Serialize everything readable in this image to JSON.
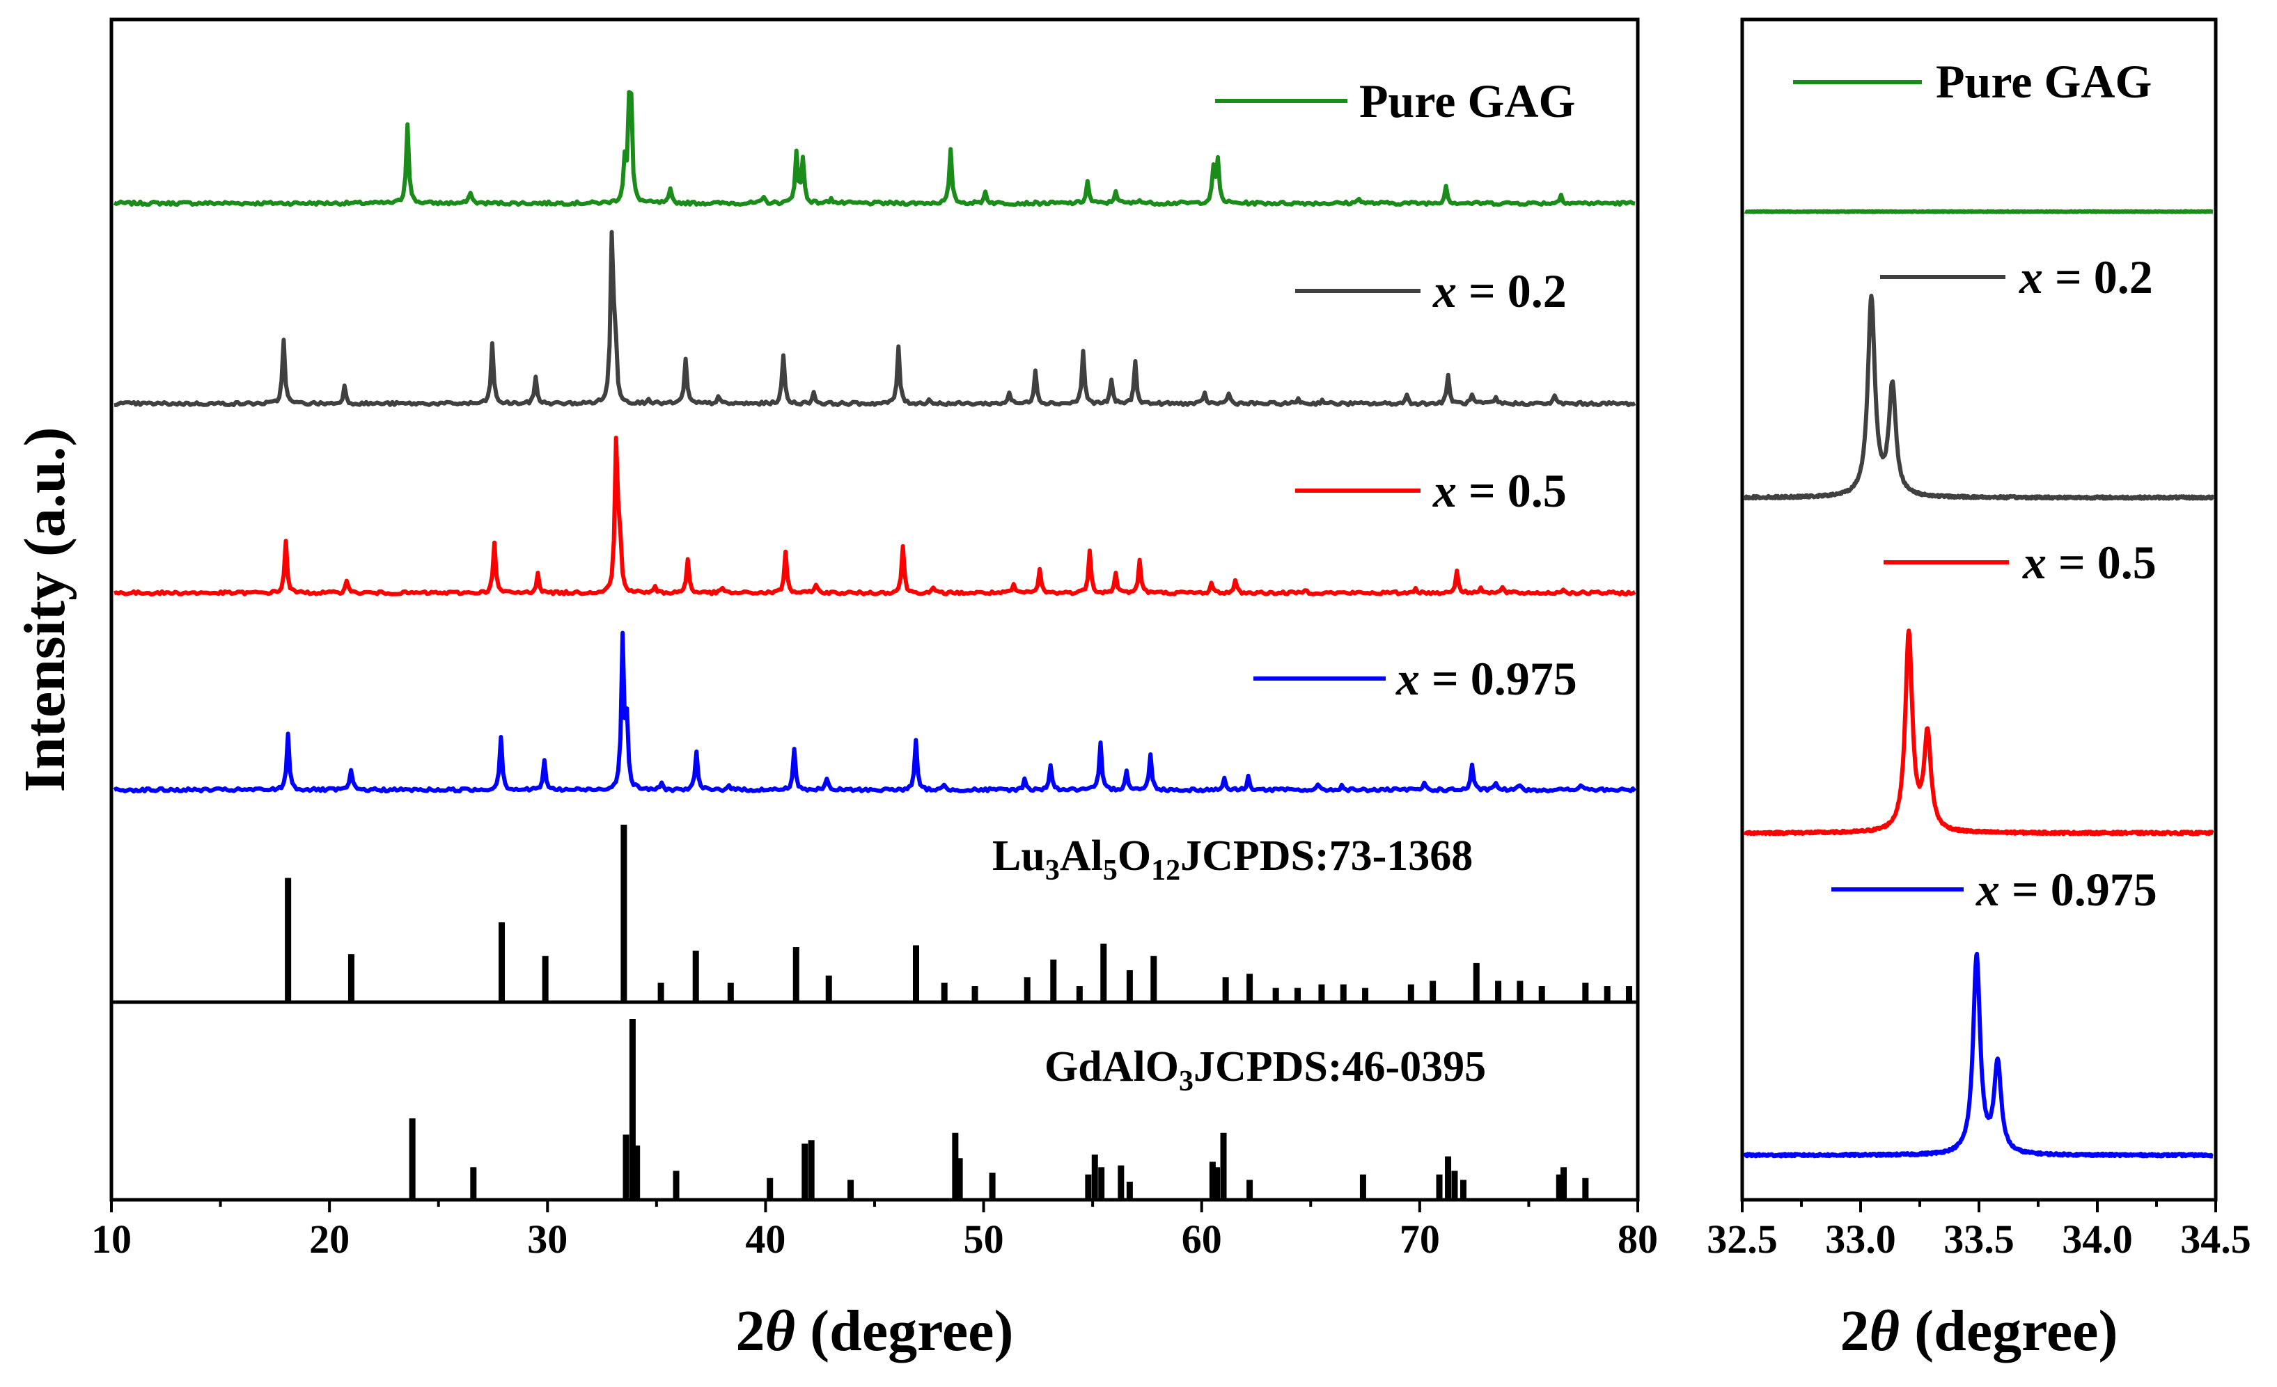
{
  "chart_data": [
    {
      "type": "line",
      "panel": "main",
      "xlabel_prefix": "2",
      "xlabel_symbol": "θ",
      "xlabel_suffix": " (degree)",
      "ylabel": "Intensity (a.u.)",
      "xlim": [
        10,
        80
      ],
      "xticks": [
        10,
        20,
        30,
        40,
        50,
        60,
        70,
        80
      ],
      "series": [
        {
          "name": "Pure GAG",
          "legend": "Pure GAG",
          "color": "#1a8c1a",
          "peaks": [
            [
              23.5,
              55
            ],
            [
              26.4,
              8
            ],
            [
              33.5,
              28
            ],
            [
              33.75,
              110
            ],
            [
              35.6,
              9
            ],
            [
              39.9,
              4
            ],
            [
              41.4,
              35
            ],
            [
              41.7,
              30
            ],
            [
              43.0,
              4
            ],
            [
              48.5,
              36
            ],
            [
              50.1,
              8
            ],
            [
              54.8,
              15
            ],
            [
              56.1,
              9
            ],
            [
              57.2,
              3
            ],
            [
              60.6,
              24
            ],
            [
              60.8,
              28
            ],
            [
              67.3,
              4
            ],
            [
              71.3,
              12
            ],
            [
              76.6,
              6
            ]
          ]
        },
        {
          "name": "x = 0.2",
          "legend_var": "x",
          "legend_val": " = 0.2",
          "color": "#404040",
          "peaks": [
            [
              17.8,
              45
            ],
            [
              20.6,
              12
            ],
            [
              27.4,
              42
            ],
            [
              29.4,
              19
            ],
            [
              32.9,
              110
            ],
            [
              33.05,
              55
            ],
            [
              34.6,
              4
            ],
            [
              36.3,
              31
            ],
            [
              37.8,
              5
            ],
            [
              40.8,
              34
            ],
            [
              42.2,
              8
            ],
            [
              46.1,
              40
            ],
            [
              47.5,
              3
            ],
            [
              51.2,
              8
            ],
            [
              52.4,
              24
            ],
            [
              54.6,
              37
            ],
            [
              55.9,
              16
            ],
            [
              57.0,
              29
            ],
            [
              60.2,
              7
            ],
            [
              61.3,
              8
            ],
            [
              64.5,
              4
            ],
            [
              65.6,
              3
            ],
            [
              69.5,
              6
            ],
            [
              71.4,
              20
            ],
            [
              72.5,
              6
            ],
            [
              73.6,
              4
            ],
            [
              76.3,
              5
            ]
          ]
        },
        {
          "name": "x = 0.5",
          "legend_var": "x",
          "legend_val": " = 0.5",
          "color": "#ff0000",
          "peaks": [
            [
              17.9,
              38
            ],
            [
              20.7,
              10
            ],
            [
              27.5,
              37
            ],
            [
              29.5,
              15
            ],
            [
              33.1,
              105
            ],
            [
              33.25,
              50
            ],
            [
              34.9,
              4
            ],
            [
              36.4,
              25
            ],
            [
              38.0,
              4
            ],
            [
              40.9,
              30
            ],
            [
              42.3,
              7
            ],
            [
              46.3,
              34
            ],
            [
              47.7,
              3
            ],
            [
              51.4,
              6
            ],
            [
              52.6,
              17
            ],
            [
              54.9,
              32
            ],
            [
              56.1,
              14
            ],
            [
              57.2,
              24
            ],
            [
              60.5,
              7
            ],
            [
              61.6,
              9
            ],
            [
              64.8,
              3
            ],
            [
              69.9,
              4
            ],
            [
              71.8,
              17
            ],
            [
              72.9,
              5
            ],
            [
              73.9,
              4
            ],
            [
              76.7,
              3
            ]
          ]
        },
        {
          "name": "x = 0.975",
          "legend_var": "x",
          "legend_val": " = 0.975",
          "color": "#0000ff",
          "peaks": [
            [
              18.0,
              40
            ],
            [
              20.9,
              14
            ],
            [
              27.8,
              38
            ],
            [
              29.8,
              20
            ],
            [
              33.4,
              105
            ],
            [
              33.6,
              45
            ],
            [
              35.2,
              4
            ],
            [
              36.8,
              26
            ],
            [
              38.3,
              4
            ],
            [
              41.3,
              28
            ],
            [
              42.8,
              8
            ],
            [
              46.9,
              34
            ],
            [
              48.2,
              3
            ],
            [
              51.9,
              7
            ],
            [
              53.1,
              18
            ],
            [
              55.4,
              32
            ],
            [
              56.6,
              14
            ],
            [
              57.7,
              25
            ],
            [
              61.1,
              8
            ],
            [
              62.2,
              9
            ],
            [
              65.4,
              3
            ],
            [
              66.5,
              3
            ],
            [
              70.3,
              5
            ],
            [
              72.5,
              17
            ],
            [
              73.6,
              5
            ],
            [
              74.7,
              4
            ],
            [
              77.5,
              4
            ]
          ]
        }
      ],
      "references": [
        {
          "name": "Lu3Al5O12 JCPDS:73-1368",
          "label_parts": [
            "Lu",
            "3",
            "Al",
            "5",
            "O",
            "12",
            "JCPDS:73-1368"
          ],
          "sticks": [
            [
              18.1,
              70
            ],
            [
              21.0,
              27
            ],
            [
              27.9,
              45
            ],
            [
              29.9,
              26
            ],
            [
              33.5,
              100
            ],
            [
              35.2,
              11
            ],
            [
              36.8,
              29
            ],
            [
              38.4,
              11
            ],
            [
              41.4,
              31
            ],
            [
              42.9,
              15
            ],
            [
              46.9,
              32
            ],
            [
              48.2,
              11
            ],
            [
              49.6,
              9
            ],
            [
              52.0,
              14
            ],
            [
              53.2,
              24
            ],
            [
              54.4,
              9
            ],
            [
              55.5,
              33
            ],
            [
              56.7,
              18
            ],
            [
              57.8,
              26
            ],
            [
              61.1,
              14
            ],
            [
              62.2,
              16
            ],
            [
              63.4,
              8
            ],
            [
              64.4,
              8
            ],
            [
              65.5,
              10
            ],
            [
              66.5,
              10
            ],
            [
              67.5,
              8
            ],
            [
              69.6,
              10
            ],
            [
              70.6,
              12
            ],
            [
              72.6,
              22
            ],
            [
              73.6,
              12
            ],
            [
              74.6,
              12
            ],
            [
              75.6,
              9
            ],
            [
              77.6,
              11
            ],
            [
              78.6,
              9
            ],
            [
              79.6,
              9
            ]
          ]
        },
        {
          "name": "GdAlO3 JCPDS:46-0395",
          "label_parts": [
            "GdAlO",
            "3",
            "JCPDS:46-0395"
          ],
          "sticks": [
            [
              23.8,
              45
            ],
            [
              26.6,
              18
            ],
            [
              33.6,
              36
            ],
            [
              33.9,
              100
            ],
            [
              34.1,
              30
            ],
            [
              35.9,
              16
            ],
            [
              40.2,
              12
            ],
            [
              41.8,
              31
            ],
            [
              42.1,
              33
            ],
            [
              43.9,
              11
            ],
            [
              48.7,
              37
            ],
            [
              48.9,
              23
            ],
            [
              50.4,
              15
            ],
            [
              54.8,
              14
            ],
            [
              55.1,
              25
            ],
            [
              55.4,
              18
            ],
            [
              56.3,
              19
            ],
            [
              56.7,
              10
            ],
            [
              60.5,
              21
            ],
            [
              60.7,
              18
            ],
            [
              61.0,
              37
            ],
            [
              62.2,
              11
            ],
            [
              67.4,
              14
            ],
            [
              70.9,
              14
            ],
            [
              71.3,
              24
            ],
            [
              71.6,
              16
            ],
            [
              72.0,
              11
            ],
            [
              76.4,
              14
            ],
            [
              76.6,
              18
            ],
            [
              77.6,
              12
            ]
          ]
        }
      ]
    },
    {
      "type": "line",
      "panel": "zoom",
      "xlabel_prefix": "2",
      "xlabel_symbol": "θ",
      "xlabel_suffix": " (degree)",
      "xlim": [
        32.5,
        34.5
      ],
      "xticks": [
        "32.5",
        "33.0",
        "33.5",
        "34.0",
        "34.5"
      ],
      "series": [
        {
          "name": "Pure GAG",
          "legend": "Pure GAG",
          "color": "#1a8c1a",
          "peaks": []
        },
        {
          "name": "x = 0.2",
          "legend_var": "x",
          "legend_val": " = 0.2",
          "color": "#404040",
          "peaks": [
            [
              33.04,
              100
            ],
            [
              33.13,
              55
            ]
          ]
        },
        {
          "name": "x = 0.5",
          "legend_var": "x",
          "legend_val": " = 0.5",
          "color": "#ff0000",
          "peaks": [
            [
              33.2,
              100
            ],
            [
              33.28,
              48
            ]
          ]
        },
        {
          "name": "x = 0.975",
          "legend_var": "x",
          "legend_val": " = 0.975",
          "color": "#0000ff",
          "peaks": [
            [
              33.49,
              100
            ],
            [
              33.58,
              45
            ]
          ]
        }
      ]
    }
  ]
}
